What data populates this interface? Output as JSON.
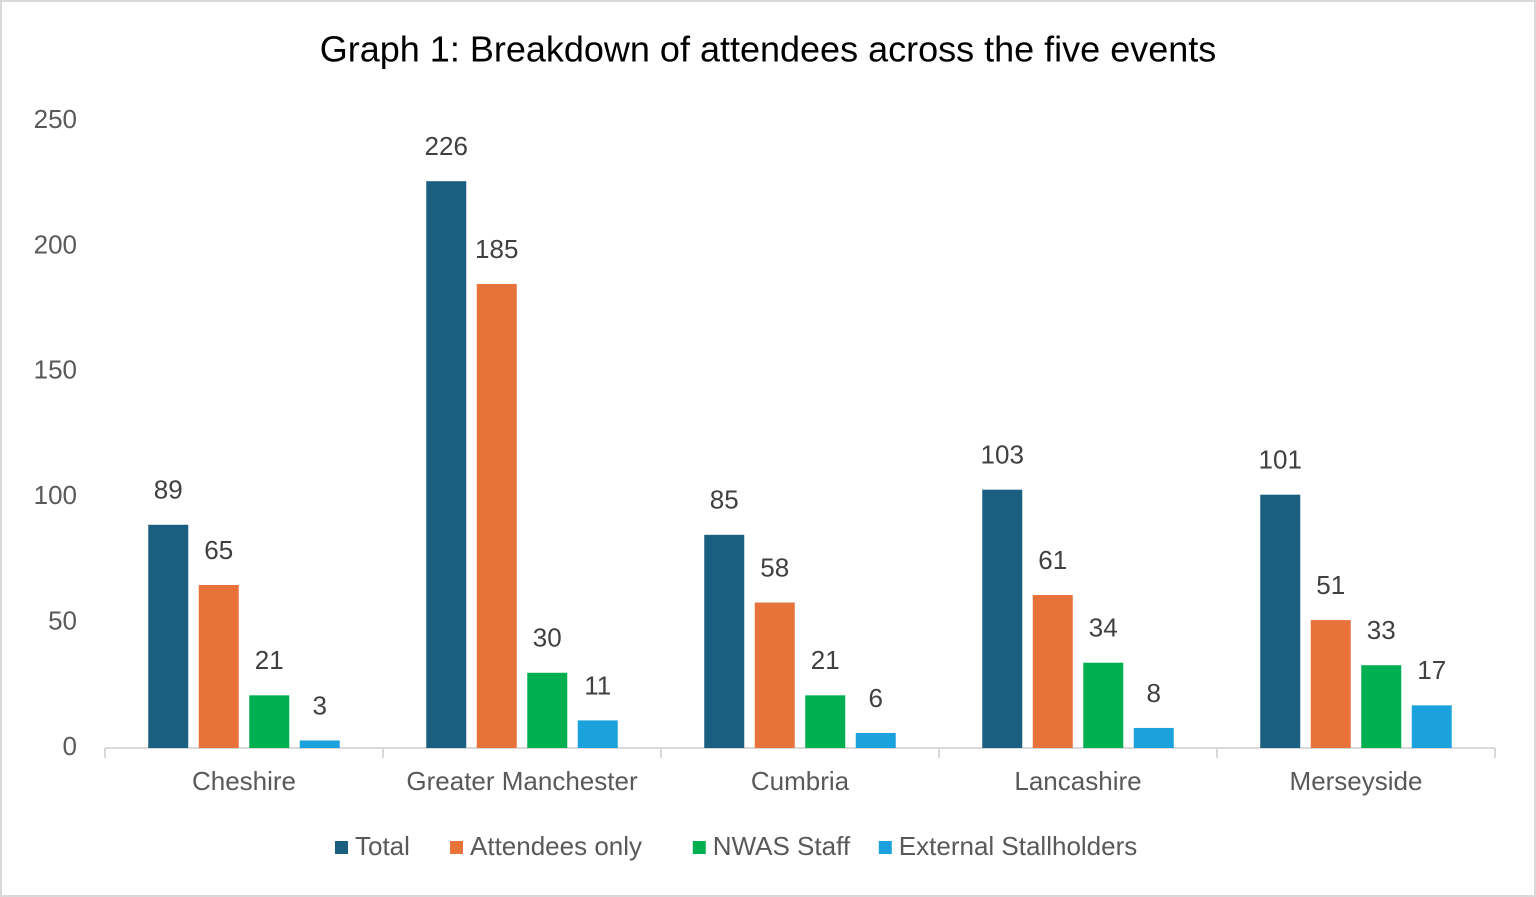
{
  "chart_data": {
    "type": "bar",
    "title": "Graph 1: Breakdown of attendees across the five events",
    "categories": [
      "Cheshire",
      "Greater Manchester",
      "Cumbria",
      "Lancashire",
      "Merseyside"
    ],
    "series": [
      {
        "name": "Total",
        "color": "#1a5e80",
        "values": [
          89,
          226,
          85,
          103,
          101
        ]
      },
      {
        "name": "Attendees only",
        "color": "#e8733a",
        "values": [
          65,
          185,
          58,
          61,
          51
        ]
      },
      {
        "name": "NWAS Staff",
        "color": "#00b050",
        "values": [
          21,
          30,
          21,
          34,
          33
        ]
      },
      {
        "name": "External Stallholders",
        "color": "#1ba1db",
        "values": [
          3,
          11,
          6,
          8,
          17
        ]
      }
    ],
    "ylim": [
      0,
      250
    ],
    "yticks": [
      0,
      50,
      100,
      150,
      200,
      250
    ],
    "grid": false,
    "legend": "bottom"
  }
}
